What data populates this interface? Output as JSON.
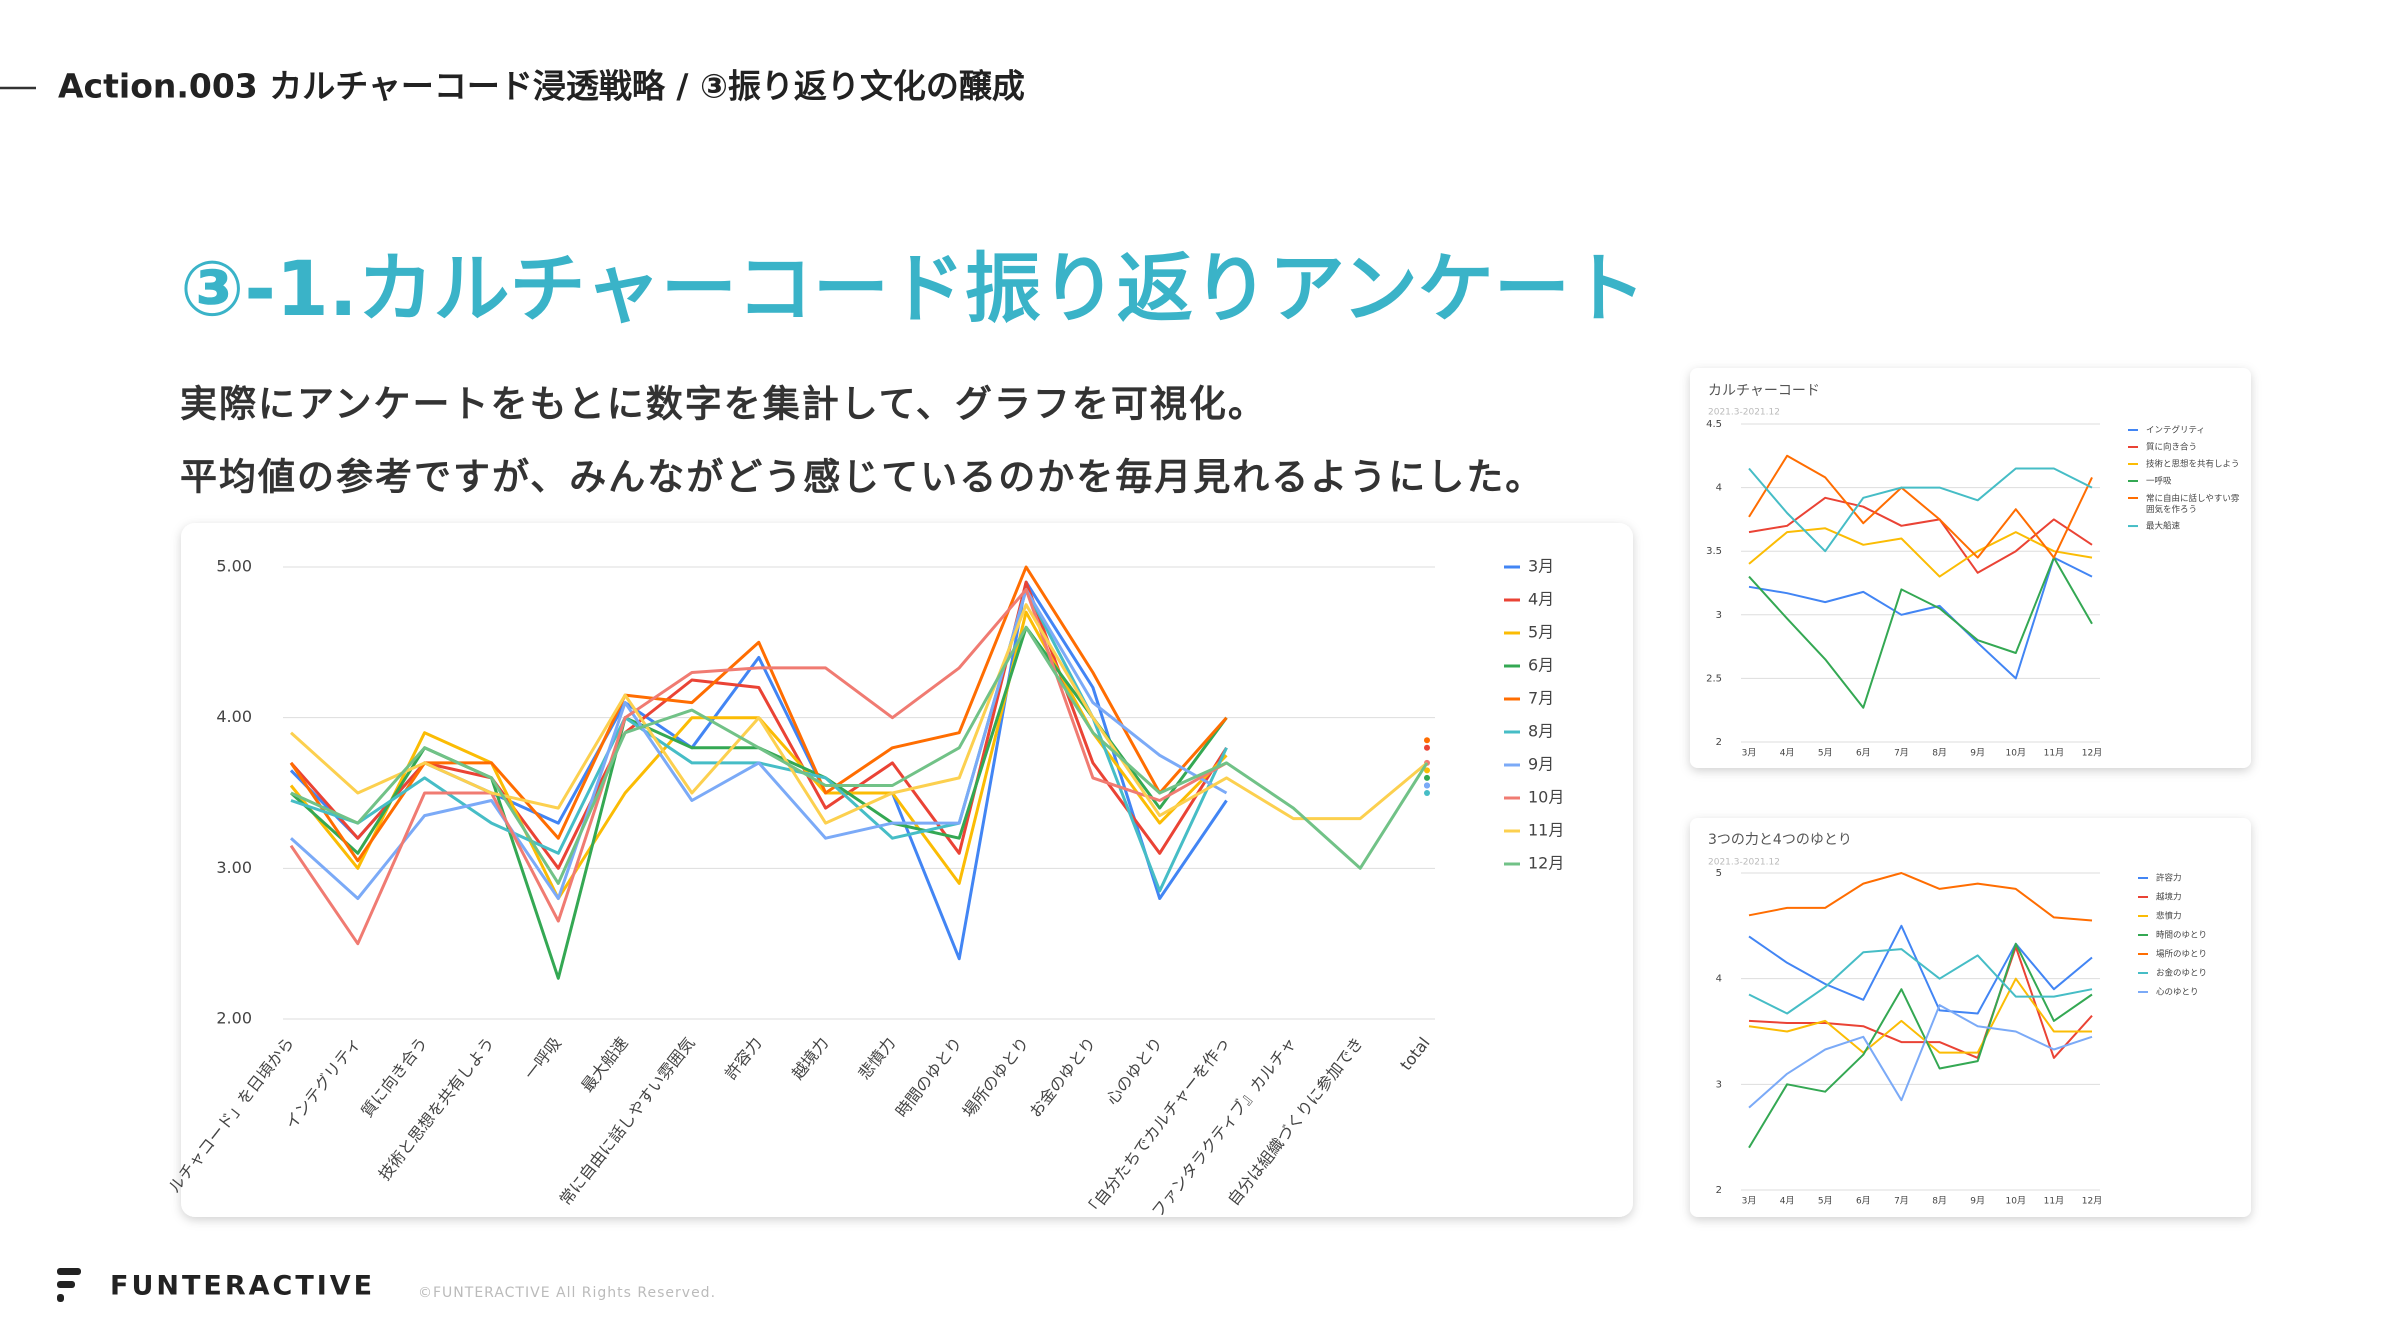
{
  "header": {
    "title": "Action.003 カルチャーコード浸透戦略 / ③振り返り文化の醸成"
  },
  "heading": "③-1.カルチャーコード振り返りアンケート",
  "body": [
    "実際にアンケートをもとに数字を集計して、グラフを可視化。",
    "平均値の参考ですが、みんながどう感じているのかを毎月見れるようにした。"
  ],
  "chart_data": [
    {
      "type": "line",
      "categories": [
        "ルチャコード」を日頃から",
        "インテグリティ",
        "質に向き合う",
        "技術と思想を共有しよう",
        "一呼吸",
        "最大船速",
        "常に自由に話しやすい雰囲気",
        "許容力",
        "越境力",
        "悲憤力",
        "時間のゆとり",
        "場所のゆとり",
        "お金のゆとり",
        "心のゆとり",
        "「自分たちでカルチャーを作っ",
        "ファンタラクティブ』カルチャ",
        "自分は組織づくりに参加でき",
        "total"
      ],
      "ylim": [
        2,
        5
      ],
      "yticks": [
        {
          "value": 2,
          "label": "2.00"
        },
        {
          "value": 3,
          "label": "3.00"
        },
        {
          "value": 4,
          "label": "4.00"
        },
        {
          "value": 5,
          "label": "5.00"
        }
      ],
      "grid": true,
      "series": [
        {
          "name": "3月",
          "color": "#4285f4",
          "values": [
            3.65,
            3.2,
            3.7,
            3.5,
            3.3,
            4.1,
            3.8,
            4.4,
            3.5,
            3.5,
            2.4,
            4.9,
            4.2,
            2.8,
            3.45,
            null,
            null,
            3.55
          ]
        },
        {
          "name": "4月",
          "color": "#ea4335",
          "values": [
            3.7,
            3.2,
            3.7,
            3.6,
            3.0,
            3.9,
            4.25,
            4.2,
            3.4,
            3.7,
            3.1,
            4.9,
            3.7,
            3.1,
            3.8,
            null,
            null,
            3.8
          ]
        },
        {
          "name": "5月",
          "color": "#fbbc04",
          "values": [
            3.55,
            3.0,
            3.9,
            3.7,
            2.8,
            3.5,
            4.0,
            4.0,
            3.5,
            3.5,
            2.9,
            4.7,
            3.9,
            3.3,
            3.75,
            null,
            null,
            3.65
          ]
        },
        {
          "name": "6月",
          "color": "#34a853",
          "values": [
            3.5,
            3.1,
            3.8,
            3.6,
            2.27,
            4.0,
            3.8,
            3.8,
            3.6,
            3.3,
            3.2,
            4.6,
            4.0,
            3.4,
            4.0,
            null,
            null,
            3.6
          ]
        },
        {
          "name": "7月",
          "color": "#ff6d01",
          "values": [
            3.7,
            3.05,
            3.7,
            3.7,
            3.2,
            4.15,
            4.1,
            4.5,
            3.5,
            3.8,
            3.9,
            5.0,
            4.3,
            3.5,
            4.0,
            null,
            null,
            3.85
          ]
        },
        {
          "name": "8月",
          "color": "#46bdc6",
          "values": [
            3.45,
            3.3,
            3.6,
            3.3,
            3.1,
            4.0,
            3.7,
            3.7,
            3.6,
            3.2,
            3.3,
            4.85,
            4.0,
            2.85,
            3.8,
            null,
            null,
            3.5
          ]
        },
        {
          "name": "9月",
          "color": "#7baaf7",
          "values": [
            3.2,
            2.8,
            3.35,
            3.45,
            2.8,
            4.1,
            3.45,
            3.7,
            3.2,
            3.3,
            3.3,
            4.85,
            4.1,
            3.75,
            3.5,
            null,
            null,
            3.55
          ]
        },
        {
          "name": "10月",
          "color": "#f07b72",
          "values": [
            3.15,
            2.5,
            3.5,
            3.5,
            2.65,
            4.0,
            4.3,
            4.33,
            4.33,
            4.0,
            4.33,
            4.85,
            3.6,
            3.45,
            3.7,
            null,
            null,
            3.7
          ]
        },
        {
          "name": "11月",
          "color": "#fcd04f",
          "values": [
            3.9,
            3.5,
            3.7,
            3.5,
            3.4,
            4.15,
            3.5,
            4.0,
            3.3,
            3.5,
            3.6,
            4.75,
            4.0,
            3.35,
            3.6,
            3.33,
            3.33,
            3.7
          ]
        },
        {
          "name": "12月",
          "color": "#71c287",
          "values": [
            3.5,
            3.3,
            3.8,
            3.6,
            2.9,
            3.9,
            4.05,
            3.8,
            3.55,
            3.55,
            3.8,
            4.6,
            3.9,
            3.5,
            3.7,
            3.4,
            3.0,
            3.7
          ]
        }
      ]
    },
    {
      "type": "line",
      "title": "カルチャーコード",
      "subtitle": "2021.3-2021.12",
      "categories": [
        "3月",
        "4月",
        "5月",
        "6月",
        "7月",
        "8月",
        "9月",
        "10月",
        "11月",
        "12月"
      ],
      "ylim": [
        2,
        4.5
      ],
      "yticks": [
        2,
        2.5,
        3,
        3.5,
        4,
        4.5
      ],
      "grid": true,
      "series": [
        {
          "name": "インテグリティ",
          "color": "#4285f4",
          "values": [
            3.22,
            3.17,
            3.1,
            3.18,
            3.0,
            3.07,
            2.78,
            2.5,
            3.45,
            3.3
          ]
        },
        {
          "name": "質に向き合う",
          "color": "#ea4335",
          "values": [
            3.65,
            3.7,
            3.92,
            3.85,
            3.7,
            3.75,
            3.33,
            3.5,
            3.75,
            3.55
          ]
        },
        {
          "name": "技術と思想を共有しよう",
          "color": "#fbbc04",
          "values": [
            3.4,
            3.65,
            3.68,
            3.55,
            3.6,
            3.3,
            3.5,
            3.65,
            3.5,
            3.45
          ]
        },
        {
          "name": "一呼吸",
          "color": "#34a853",
          "values": [
            3.3,
            2.97,
            2.65,
            2.27,
            3.2,
            3.05,
            2.8,
            2.7,
            3.45,
            2.93
          ]
        },
        {
          "name": "常に自由に話しやすい雰囲気を作ろう",
          "color": "#ff6d01",
          "values": [
            3.77,
            4.25,
            4.08,
            3.72,
            4.0,
            3.75,
            3.45,
            3.83,
            3.45,
            4.08
          ]
        },
        {
          "name": "最大船速",
          "color": "#46bdc6",
          "values": [
            4.15,
            3.8,
            3.5,
            3.92,
            4.0,
            4.0,
            3.9,
            4.15,
            4.15,
            4.0
          ]
        }
      ]
    },
    {
      "type": "line",
      "title": "3つの力と4つのゆとり",
      "subtitle": "2021.3-2021.12",
      "categories": [
        "3月",
        "4月",
        "5月",
        "6月",
        "7月",
        "8月",
        "9月",
        "10月",
        "11月",
        "12月"
      ],
      "ylim": [
        2,
        5
      ],
      "yticks": [
        2,
        3,
        4,
        5
      ],
      "grid": true,
      "series": [
        {
          "name": "許容力",
          "color": "#4285f4",
          "values": [
            4.4,
            4.15,
            3.95,
            3.8,
            4.5,
            3.7,
            3.67,
            4.33,
            3.9,
            4.2
          ]
        },
        {
          "name": "越境力",
          "color": "#ea4335",
          "values": [
            3.6,
            3.58,
            3.58,
            3.55,
            3.4,
            3.4,
            3.25,
            4.3,
            3.25,
            3.65
          ]
        },
        {
          "name": "悲憤力",
          "color": "#fbbc04",
          "values": [
            3.55,
            3.5,
            3.6,
            3.3,
            3.6,
            3.3,
            3.3,
            4.0,
            3.5,
            3.5
          ]
        },
        {
          "name": "時間のゆとり",
          "color": "#34a853",
          "values": [
            2.4,
            3.0,
            2.93,
            3.28,
            3.9,
            3.15,
            3.22,
            4.33,
            3.6,
            3.85
          ]
        },
        {
          "name": "場所のゆとり",
          "color": "#ff6d01",
          "values": [
            4.6,
            4.67,
            4.67,
            4.9,
            5.0,
            4.85,
            4.9,
            4.85,
            4.58,
            4.55
          ]
        },
        {
          "name": "お金のゆとり",
          "color": "#46bdc6",
          "values": [
            3.85,
            3.67,
            3.92,
            4.25,
            4.28,
            4.0,
            4.22,
            3.83,
            3.83,
            3.9
          ]
        },
        {
          "name": "心のゆとり",
          "color": "#7baaf7",
          "values": [
            2.78,
            3.1,
            3.33,
            3.45,
            2.85,
            3.75,
            3.55,
            3.5,
            3.33,
            3.45
          ]
        }
      ]
    }
  ],
  "footer": {
    "logo": "FUNTERACTIVE",
    "copyright": "©FUNTERACTIVE All Rights Reserved."
  }
}
